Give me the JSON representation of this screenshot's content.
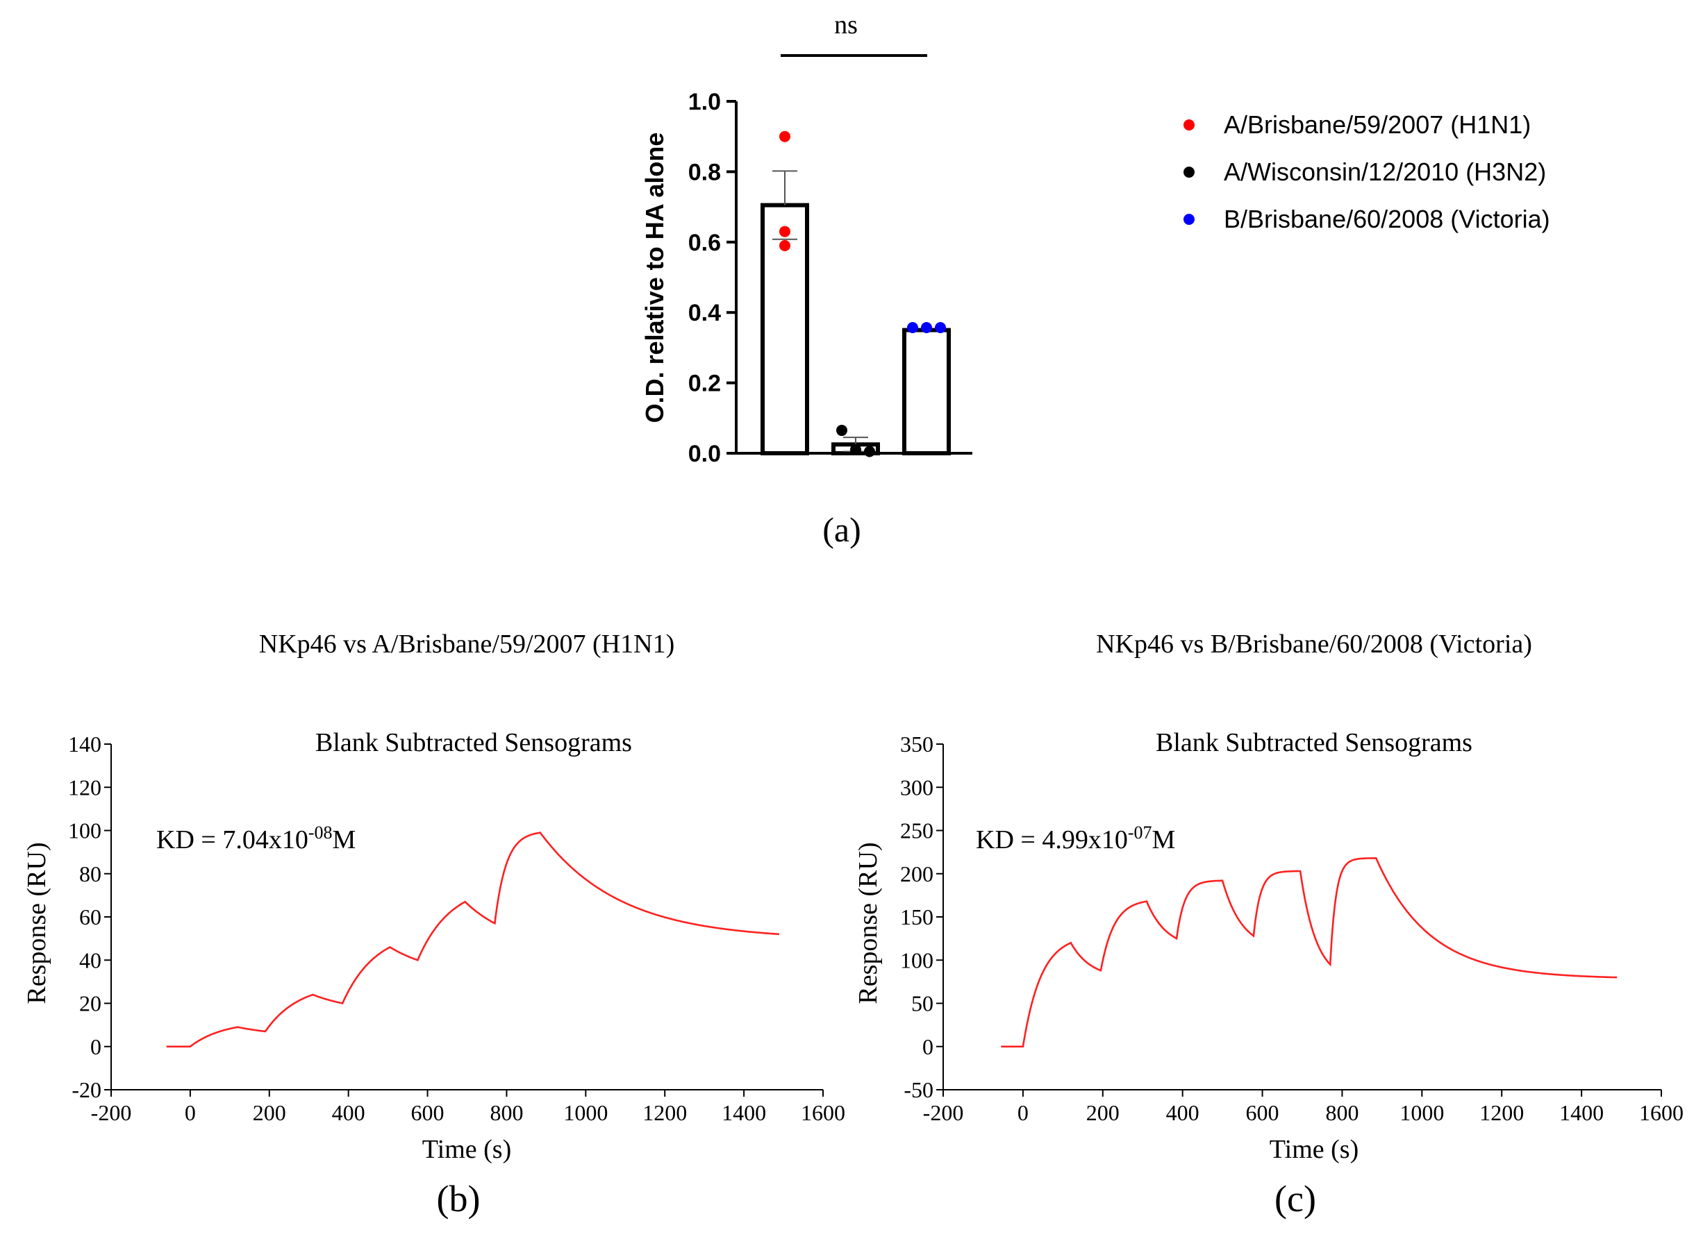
{
  "colors": {
    "h1n1": "#ff0000",
    "h3n2": "#000000",
    "victoria": "#0000ff",
    "curve": "#ff2020",
    "axis": "#000000"
  },
  "chart_data": [
    {
      "panel": "(a)",
      "type": "bar",
      "title": "",
      "ylabel": "O.D. relative to HA alone",
      "xlabel": "",
      "ylim": [
        0,
        1.0
      ],
      "yticks": [
        "0.0",
        "0.2",
        "0.4",
        "0.6",
        "0.8",
        "1.0"
      ],
      "significance": "ns",
      "categories": [
        "A/Brisbane/59/2007 (H1N1)",
        "A/Wisconsin/12/2010 (H3N2)",
        "B/Brisbane/60/2008 (Victoria)"
      ],
      "values": [
        0.705,
        0.025,
        0.35
      ],
      "error": [
        0.097,
        0.02,
        0.0
      ],
      "points": [
        [
          0.9,
          0.63,
          0.59
        ],
        [
          0.065,
          0.01,
          0.005
        ],
        [
          0.357,
          0.357,
          0.357
        ]
      ],
      "legend": [
        {
          "label": "A/Brisbane/59/2007 (H1N1)",
          "color": "#ff0000"
        },
        {
          "label": "A/Wisconsin/12/2010 (H3N2)",
          "color": "#000000"
        },
        {
          "label": "B/Brisbane/60/2008 (Victoria)",
          "color": "#0000ff"
        }
      ]
    },
    {
      "panel": "(b)",
      "type": "line",
      "header": "NKp46 vs A/Brisbane/59/2007 (H1N1)",
      "title": "Blank Subtracted Sensograms",
      "xlabel": "Time (s)",
      "ylabel": "Response (RU)",
      "annotation": {
        "prefix": "KD = 7.04x10",
        "exponent": "-08",
        "suffix": "M"
      },
      "xlim": [
        -200,
        1600
      ],
      "ylim": [
        -20,
        140
      ],
      "xticks": [
        "-200",
        "0",
        "200",
        "400",
        "600",
        "800",
        "1000",
        "1200",
        "1400",
        "1600"
      ],
      "yticks": [
        "-20",
        "0",
        "20",
        "40",
        "60",
        "80",
        "100",
        "120",
        "140"
      ],
      "baseline": {
        "t0": -60,
        "t1": 0,
        "y": 0
      },
      "cycles": [
        {
          "start": 0,
          "assocEnd": 120,
          "dissocEnd": 190,
          "y0": 0,
          "peak": 9,
          "dissocEndY": 7,
          "kon": 0.012,
          "koff": 0.008
        },
        {
          "start": 190,
          "assocEnd": 310,
          "dissocEnd": 385,
          "y0": 7,
          "peak": 24,
          "dissocEndY": 20,
          "kon": 0.012,
          "koff": 0.008
        },
        {
          "start": 385,
          "assocEnd": 505,
          "dissocEnd": 575,
          "y0": 20,
          "peak": 46,
          "dissocEndY": 40,
          "kon": 0.012,
          "koff": 0.008
        },
        {
          "start": 575,
          "assocEnd": 695,
          "dissocEnd": 770,
          "y0": 40,
          "peak": 67,
          "dissocEndY": 57,
          "kon": 0.012,
          "koff": 0.008
        },
        {
          "start": 770,
          "assocEnd": 885,
          "dissocEnd": 1490,
          "y0": 57,
          "peak": 99,
          "dissocEndY": 52,
          "kon": 0.035,
          "koff": 0.005
        }
      ]
    },
    {
      "panel": "(c)",
      "type": "line",
      "header": "NKp46 vs B/Brisbane/60/2008 (Victoria)",
      "title": "Blank Subtracted Sensograms",
      "xlabel": "Time (s)",
      "ylabel": "Response (RU)",
      "annotation": {
        "prefix": "KD = 4.99x10",
        "exponent": "-07",
        "suffix": "M"
      },
      "xlim": [
        -200,
        1600
      ],
      "ylim": [
        -50,
        350
      ],
      "xticks": [
        "-200",
        "0",
        "200",
        "400",
        "600",
        "800",
        "1000",
        "1200",
        "1400",
        "1600"
      ],
      "yticks": [
        "-50",
        "0",
        "50",
        "100",
        "150",
        "200",
        "250",
        "300",
        "350"
      ],
      "baseline": {
        "t0": -55,
        "t1": 0,
        "y": 0
      },
      "cycles": [
        {
          "start": 0,
          "assocEnd": 120,
          "dissocEnd": 195,
          "y0": 0,
          "peak": 120,
          "dissocEndY": 88,
          "kon": 0.022,
          "koff": 0.02
        },
        {
          "start": 195,
          "assocEnd": 310,
          "dissocEnd": 385,
          "y0": 88,
          "peak": 168,
          "dissocEndY": 125,
          "kon": 0.03,
          "koff": 0.02
        },
        {
          "start": 385,
          "assocEnd": 500,
          "dissocEnd": 578,
          "y0": 125,
          "peak": 192,
          "dissocEndY": 128,
          "kon": 0.05,
          "koff": 0.02
        },
        {
          "start": 578,
          "assocEnd": 695,
          "dissocEnd": 770,
          "y0": 128,
          "peak": 203,
          "dissocEndY": 95,
          "kon": 0.06,
          "koff": 0.025
        },
        {
          "start": 770,
          "assocEnd": 885,
          "dissocEnd": 1490,
          "y0": 95,
          "peak": 218,
          "dissocEndY": 80,
          "kon": 0.07,
          "koff": 0.0075
        }
      ]
    }
  ],
  "panel_labels": {
    "a": "(a)",
    "b": "(b)",
    "c": "(c)"
  }
}
